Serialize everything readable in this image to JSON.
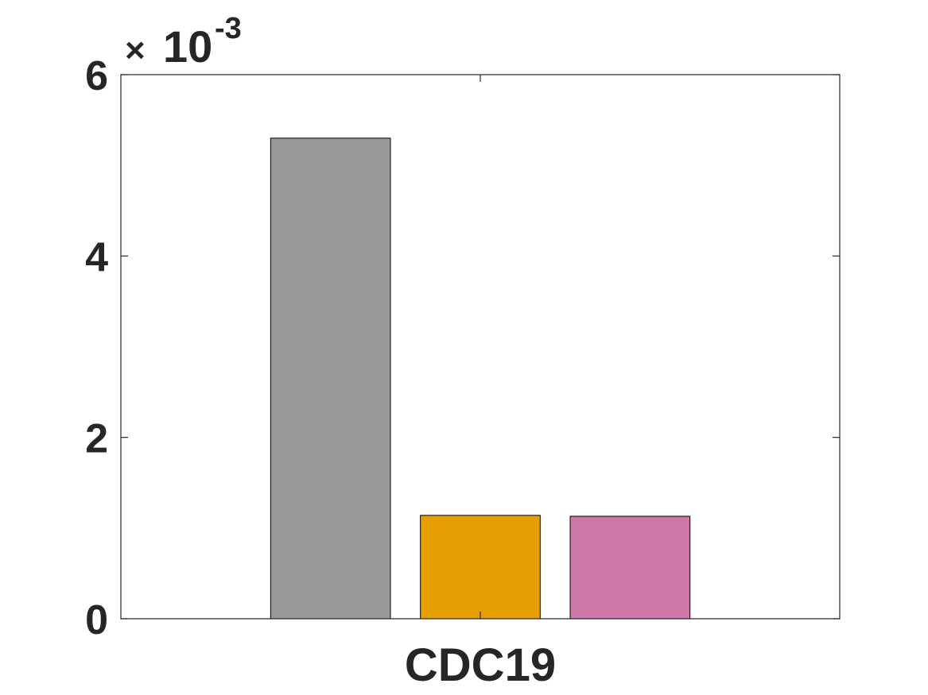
{
  "chart_data": {
    "type": "bar",
    "categories": [
      "CDC19"
    ],
    "series": [
      {
        "values": [
          0.0053
        ],
        "color": "#999999"
      },
      {
        "values": [
          0.00114
        ],
        "color": "#E69F00"
      },
      {
        "values": [
          0.00113
        ],
        "color": "#CC79A7"
      }
    ],
    "title": "",
    "xlabel": "",
    "ylabel": "",
    "ylim": [
      0,
      0.006
    ],
    "yticks": [
      0,
      0.002,
      0.004,
      0.006
    ],
    "ytick_labels": [
      "0",
      "2",
      "4",
      "6"
    ],
    "y_exponent": {
      "times": "×",
      "base": "10",
      "power": "-3"
    },
    "grid": false,
    "legend": "none"
  }
}
